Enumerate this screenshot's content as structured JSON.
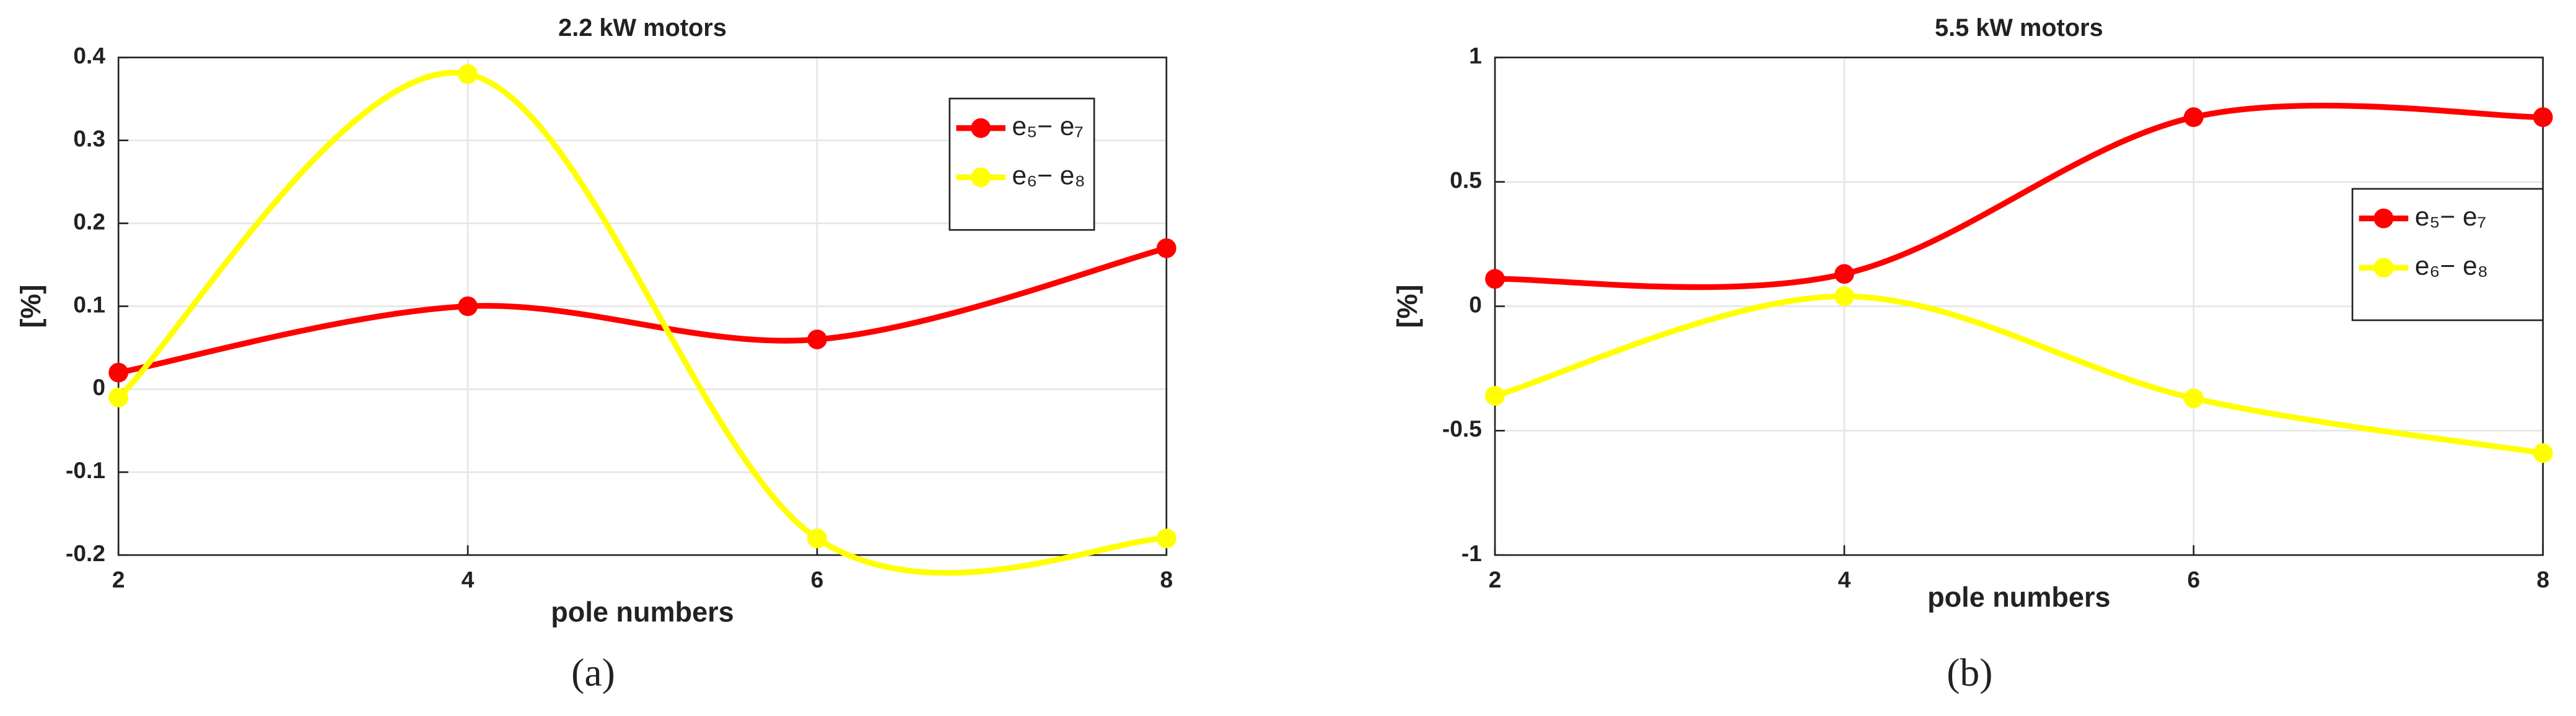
{
  "chart_data": [
    {
      "type": "line",
      "title": "2.2 kW motors",
      "x_label": "pole numbers",
      "y_label": "[%]",
      "caption": "(a)",
      "x": [
        2,
        4,
        6,
        8
      ],
      "series": [
        {
          "name": "e₅− e₇",
          "color": "#ff0000",
          "values": [
            0.02,
            0.1,
            0.06,
            0.17
          ]
        },
        {
          "name": "e₆− e₈",
          "color": "#ffff00",
          "values": [
            -0.01,
            0.38,
            -0.18,
            -0.18
          ]
        }
      ],
      "xlim": [
        2,
        8
      ],
      "xticks": [
        2,
        4,
        6,
        8
      ],
      "ylim": [
        -0.2,
        0.4
      ],
      "yticks": [
        -0.2,
        -0.1,
        0,
        0.1,
        0.2,
        0.3,
        0.4
      ],
      "grid": true,
      "legend": "upper right"
    },
    {
      "type": "line",
      "title": "5.5 kW motors",
      "x_label": "pole numbers",
      "y_label": "[%]",
      "caption": "(b)",
      "x": [
        2,
        4,
        6,
        8
      ],
      "series": [
        {
          "name": "e₅− e₇",
          "color": "#ff0000",
          "values": [
            0.11,
            0.13,
            0.76,
            0.76
          ]
        },
        {
          "name": "e₆− e₈",
          "color": "#ffff00",
          "values": [
            -0.36,
            0.04,
            -0.37,
            -0.59
          ]
        }
      ],
      "xlim": [
        2,
        8
      ],
      "xticks": [
        2,
        4,
        6,
        8
      ],
      "ylim": [
        -1,
        1
      ],
      "yticks": [
        -1,
        -0.5,
        0,
        0.5,
        1
      ],
      "grid": true,
      "legend": "right"
    }
  ]
}
